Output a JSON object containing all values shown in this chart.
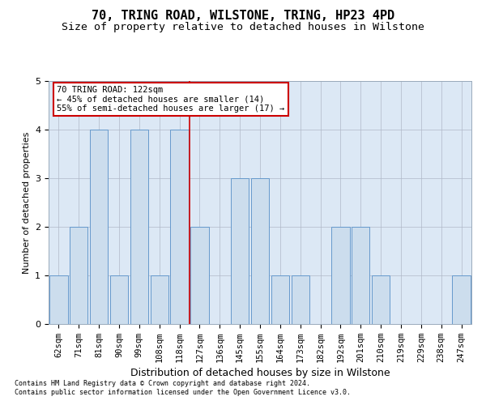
{
  "title": "70, TRING ROAD, WILSTONE, TRING, HP23 4PD",
  "subtitle": "Size of property relative to detached houses in Wilstone",
  "xlabel": "Distribution of detached houses by size in Wilstone",
  "ylabel": "Number of detached properties",
  "categories": [
    "62sqm",
    "71sqm",
    "81sqm",
    "90sqm",
    "99sqm",
    "108sqm",
    "118sqm",
    "127sqm",
    "136sqm",
    "145sqm",
    "155sqm",
    "164sqm",
    "173sqm",
    "182sqm",
    "192sqm",
    "201sqm",
    "210sqm",
    "219sqm",
    "229sqm",
    "238sqm",
    "247sqm"
  ],
  "values": [
    1,
    2,
    4,
    1,
    4,
    1,
    4,
    2,
    0,
    3,
    3,
    1,
    1,
    0,
    2,
    2,
    1,
    0,
    0,
    0,
    1
  ],
  "red_line_x": 6.5,
  "bar_color": "#ccdded",
  "bar_edge_color": "#6699cc",
  "highlight_line_color": "#cc0000",
  "annotation_text": "70 TRING ROAD: 122sqm\n← 45% of detached houses are smaller (14)\n55% of semi-detached houses are larger (17) →",
  "annotation_box_color": "#ffffff",
  "annotation_box_edge": "#cc0000",
  "ylim": [
    0,
    5
  ],
  "yticks": [
    0,
    1,
    2,
    3,
    4,
    5
  ],
  "background_color": "#dce8f5",
  "footer1": "Contains HM Land Registry data © Crown copyright and database right 2024.",
  "footer2": "Contains public sector information licensed under the Open Government Licence v3.0.",
  "title_fontsize": 11,
  "subtitle_fontsize": 9.5,
  "tick_fontsize": 7.5,
  "ylabel_fontsize": 8,
  "xlabel_fontsize": 9,
  "annotation_fontsize": 7.5,
  "footer_fontsize": 6
}
